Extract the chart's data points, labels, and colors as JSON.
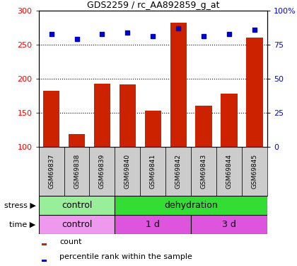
{
  "title": "GDS2259 / rc_AA892859_g_at",
  "samples": [
    "GSM69837",
    "GSM69838",
    "GSM69839",
    "GSM69840",
    "GSM69841",
    "GSM69842",
    "GSM69843",
    "GSM69844",
    "GSM69845"
  ],
  "counts": [
    182,
    118,
    193,
    191,
    153,
    282,
    160,
    178,
    260
  ],
  "percentiles": [
    83,
    79,
    83,
    84,
    81,
    87,
    81,
    83,
    86
  ],
  "ymin": 100,
  "ymax": 300,
  "bar_color": "#cc2200",
  "dot_color": "#0000cc",
  "stress_labels": [
    {
      "text": "control",
      "start": 0,
      "end": 3,
      "color": "#99ee99"
    },
    {
      "text": "dehydration",
      "start": 3,
      "end": 9,
      "color": "#33dd33"
    }
  ],
  "time_labels": [
    {
      "text": "control",
      "start": 0,
      "end": 3,
      "color": "#ee99ee"
    },
    {
      "text": "1 d",
      "start": 3,
      "end": 6,
      "color": "#dd55dd"
    },
    {
      "text": "3 d",
      "start": 6,
      "end": 9,
      "color": "#dd55dd"
    }
  ],
  "sample_box_color": "#cccccc",
  "legend_count_label": "count",
  "legend_pct_label": "percentile rank within the sample"
}
